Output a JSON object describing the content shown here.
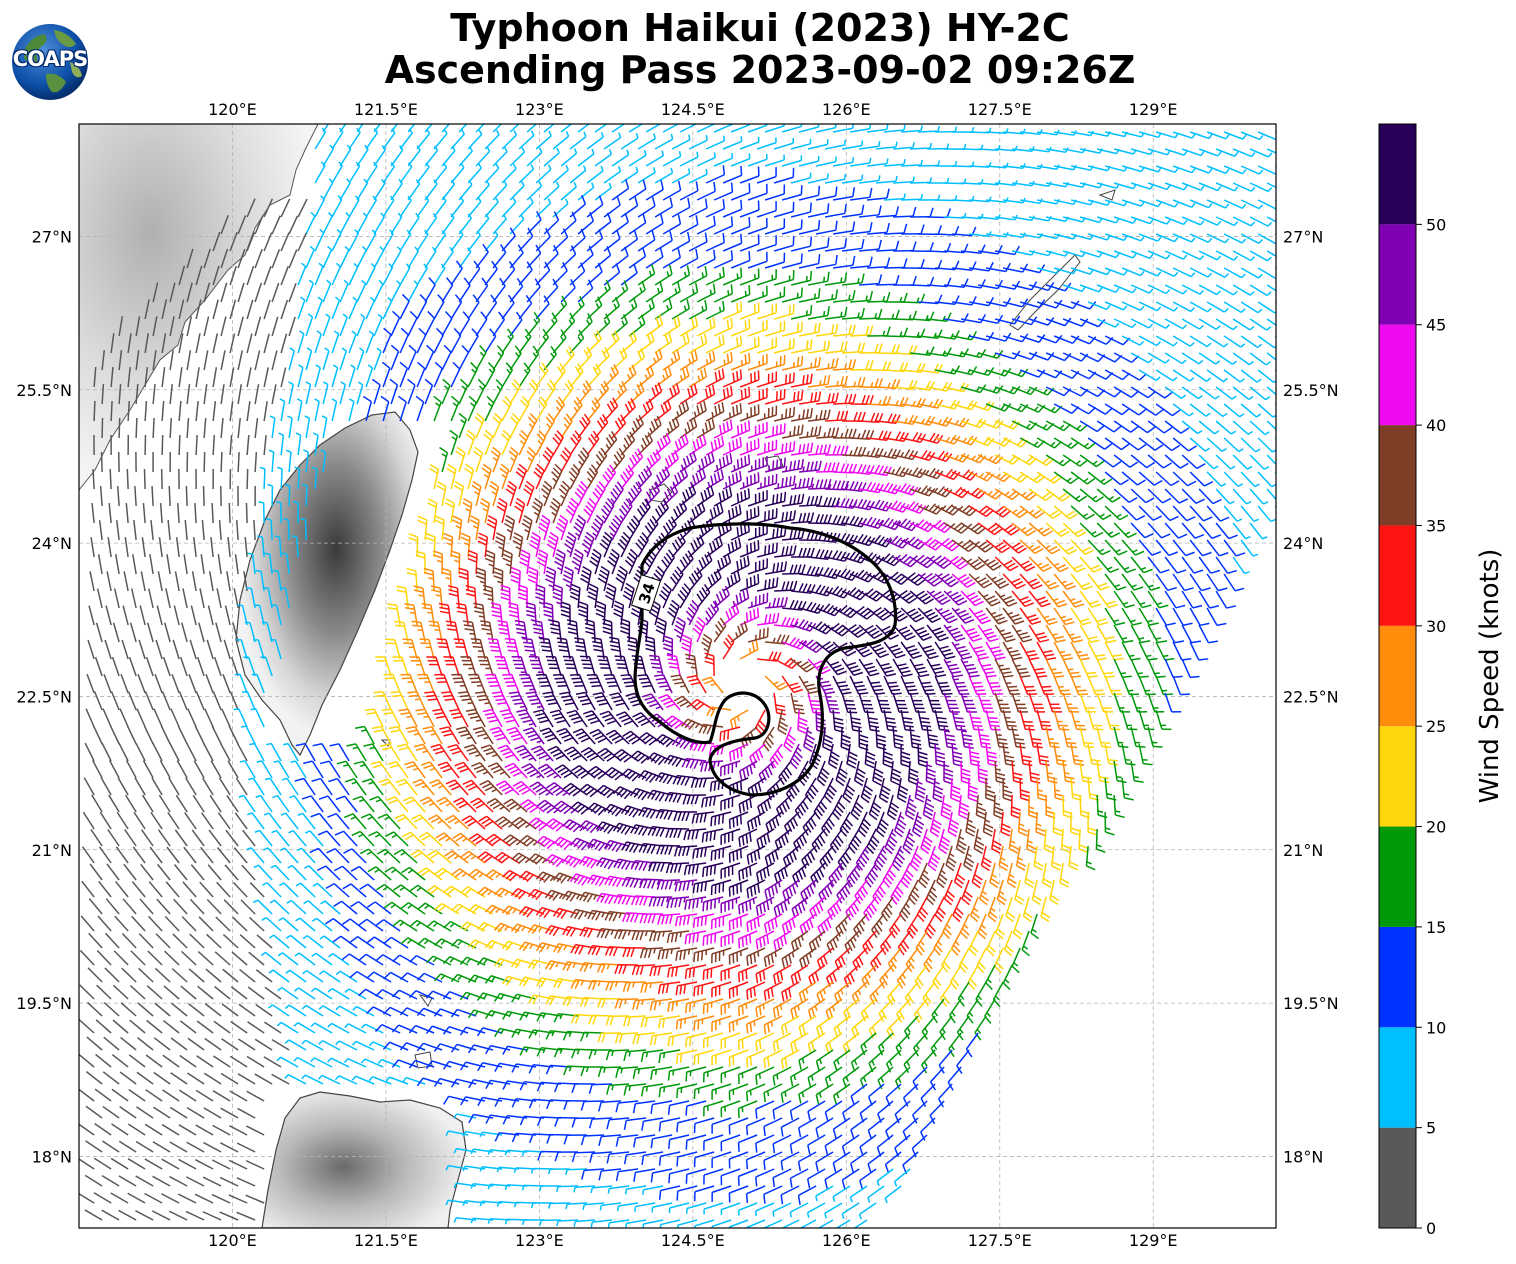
{
  "title_line1": "Typhoon Haikui (2023) HY-2C",
  "title_line2": "Ascending Pass 2023-09-02 09:26Z",
  "logo_text": "COAPS",
  "contour_label": "34",
  "map": {
    "lon_range": [
      118.5,
      130.2
    ],
    "lat_range": [
      17.3,
      28.1
    ],
    "lon_ticks": [
      "120°E",
      "121.5°E",
      "123°E",
      "124.5°E",
      "126°E",
      "127.5°E",
      "129°E"
    ],
    "lat_ticks": [
      "27°N",
      "25.5°N",
      "24°N",
      "22.5°N",
      "21°N",
      "19.5°N",
      "18°N"
    ],
    "storm_center": {
      "lon": 125.0,
      "lat": 22.6
    },
    "gridlines": true
  },
  "colorbar": {
    "label": "Wind Speed (knots)",
    "ticks": [
      "0",
      "5",
      "10",
      "15",
      "20",
      "25",
      "30",
      "35",
      "40",
      "45",
      "50"
    ],
    "range": [
      0,
      55
    ],
    "bins": [
      {
        "min": 0,
        "max": 5,
        "color": "#595959"
      },
      {
        "min": 5,
        "max": 10,
        "color": "#00bfff"
      },
      {
        "min": 10,
        "max": 15,
        "color": "#0033ff"
      },
      {
        "min": 15,
        "max": 20,
        "color": "#00990a"
      },
      {
        "min": 20,
        "max": 25,
        "color": "#ffd60a"
      },
      {
        "min": 25,
        "max": 30,
        "color": "#ff8c0a"
      },
      {
        "min": 30,
        "max": 35,
        "color": "#ff1414"
      },
      {
        "min": 35,
        "max": 40,
        "color": "#803d26"
      },
      {
        "min": 40,
        "max": 45,
        "color": "#f00af0"
      },
      {
        "min": 45,
        "max": 50,
        "color": "#8000b3"
      },
      {
        "min": 50,
        "max": 55,
        "color": "#290059"
      }
    ]
  }
}
